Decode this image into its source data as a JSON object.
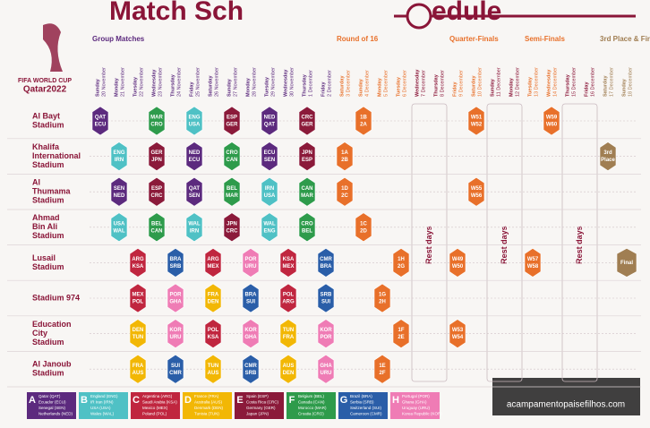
{
  "header": {
    "title_parts": [
      "Match Sch",
      "edule"
    ],
    "logo": [
      "FIFA WORLD CUP",
      "Qatar2022"
    ]
  },
  "stages": [
    {
      "name": "Group Matches",
      "days": 13,
      "color": "#5c2a7e"
    },
    {
      "name": "Round of 16",
      "days": 4,
      "color": "#e8702a"
    },
    {
      "name": "Rest days",
      "days": 2,
      "rest": true,
      "color": "#8a1538"
    },
    {
      "name": "Quarter-Finals",
      "days": 2,
      "color": "#e8702a"
    },
    {
      "name": "Rest days",
      "days": 2,
      "rest": true,
      "color": "#8a1538"
    },
    {
      "name": "Semi-Finals",
      "days": 2,
      "color": "#e8702a"
    },
    {
      "name": "Rest days",
      "days": 2,
      "rest": true,
      "color": "#8a1538"
    },
    {
      "name": "3rd Place & Final",
      "days": 2,
      "color": "#a07e52"
    }
  ],
  "dates": [
    {
      "day": "Sunday",
      "date": "20 November"
    },
    {
      "day": "Monday",
      "date": "21 November"
    },
    {
      "day": "Tuesday",
      "date": "22 November"
    },
    {
      "day": "Wednesday",
      "date": "23 November"
    },
    {
      "day": "Thursday",
      "date": "24 November"
    },
    {
      "day": "Friday",
      "date": "25 November"
    },
    {
      "day": "Saturday",
      "date": "26 November"
    },
    {
      "day": "Sunday",
      "date": "27 November"
    },
    {
      "day": "Monday",
      "date": "28 November"
    },
    {
      "day": "Tuesday",
      "date": "29 November"
    },
    {
      "day": "Wednesday",
      "date": "30 November"
    },
    {
      "day": "Thursday",
      "date": "1 December"
    },
    {
      "day": "Friday",
      "date": "2 December"
    },
    {
      "day": "Saturday",
      "date": "3 December"
    },
    {
      "day": "Sunday",
      "date": "4 December"
    },
    {
      "day": "Monday",
      "date": "5 December"
    },
    {
      "day": "Tuesday",
      "date": "6 December"
    },
    {
      "day": "Wednesday",
      "date": "7 December"
    },
    {
      "day": "Thursday",
      "date": "8 December"
    },
    {
      "day": "Friday",
      "date": "9 December"
    },
    {
      "day": "Saturday",
      "date": "10 December"
    },
    {
      "day": "Sunday",
      "date": "11 December"
    },
    {
      "day": "Monday",
      "date": "12 December"
    },
    {
      "day": "Tuesday",
      "date": "13 December"
    },
    {
      "day": "Wednesday",
      "date": "14 December"
    },
    {
      "day": "Thursday",
      "date": "15 December"
    },
    {
      "day": "Friday",
      "date": "16 December"
    },
    {
      "day": "Saturday",
      "date": "17 December"
    },
    {
      "day": "Sunday",
      "date": "18 December"
    }
  ],
  "stadiums": [
    {
      "name": [
        "Al Bayt",
        "Stadium"
      ],
      "matches": [
        {
          "day": 0,
          "t": [
            "QAT",
            "ECU"
          ],
          "g": "A"
        },
        {
          "day": 3,
          "t": [
            "MAR",
            "CRO"
          ],
          "g": "F"
        },
        {
          "day": 5,
          "t": [
            "ENG",
            "USA"
          ],
          "g": "B"
        },
        {
          "day": 7,
          "t": [
            "ESP",
            "GER"
          ],
          "g": "E"
        },
        {
          "day": 9,
          "t": [
            "NED",
            "QAT"
          ],
          "g": "A"
        },
        {
          "day": 11,
          "t": [
            "CRC",
            "GER"
          ],
          "g": "E"
        },
        {
          "day": 14,
          "t": [
            "1B",
            "2A"
          ]
        },
        {
          "day": 20,
          "t": [
            "W51",
            "W52"
          ]
        },
        {
          "day": 24,
          "t": [
            "W59",
            "W60"
          ]
        }
      ]
    },
    {
      "name": [
        "Khalifa",
        "International",
        "Stadium"
      ],
      "matches": [
        {
          "day": 1,
          "t": [
            "ENG",
            "IRN"
          ],
          "g": "B"
        },
        {
          "day": 3,
          "t": [
            "GER",
            "JPN"
          ],
          "g": "E"
        },
        {
          "day": 5,
          "t": [
            "NED",
            "ECU"
          ],
          "g": "A"
        },
        {
          "day": 7,
          "t": [
            "CRO",
            "CAN"
          ],
          "g": "F"
        },
        {
          "day": 9,
          "t": [
            "ECU",
            "SEN"
          ],
          "g": "A"
        },
        {
          "day": 11,
          "t": [
            "JPN",
            "ESP"
          ],
          "g": "E"
        },
        {
          "day": 13,
          "t": [
            "1A",
            "2B"
          ]
        },
        {
          "day": 27,
          "t": [
            "3rd",
            "Place"
          ]
        }
      ]
    },
    {
      "name": [
        "Al",
        "Thumama",
        "Stadium"
      ],
      "matches": [
        {
          "day": 1,
          "t": [
            "SEN",
            "NED"
          ],
          "g": "A"
        },
        {
          "day": 3,
          "t": [
            "ESP",
            "CRC"
          ],
          "g": "E"
        },
        {
          "day": 5,
          "t": [
            "QAT",
            "SEN"
          ],
          "g": "A"
        },
        {
          "day": 7,
          "t": [
            "BEL",
            "MAR"
          ],
          "g": "F"
        },
        {
          "day": 9,
          "t": [
            "IRN",
            "USA"
          ],
          "g": "B"
        },
        {
          "day": 11,
          "t": [
            "CAN",
            "MAR"
          ],
          "g": "F"
        },
        {
          "day": 13,
          "t": [
            "1D",
            "2C"
          ]
        },
        {
          "day": 20,
          "t": [
            "W55",
            "W56"
          ]
        }
      ]
    },
    {
      "name": [
        "Ahmad",
        "Bin Ali",
        "Stadium"
      ],
      "matches": [
        {
          "day": 1,
          "t": [
            "USA",
            "WAL"
          ],
          "g": "B"
        },
        {
          "day": 3,
          "t": [
            "BEL",
            "CAN"
          ],
          "g": "F"
        },
        {
          "day": 5,
          "t": [
            "WAL",
            "IRN"
          ],
          "g": "B"
        },
        {
          "day": 7,
          "t": [
            "JPN",
            "CRC"
          ],
          "g": "E"
        },
        {
          "day": 9,
          "t": [
            "WAL",
            "ENG"
          ],
          "g": "B"
        },
        {
          "day": 11,
          "t": [
            "CRO",
            "BEL"
          ],
          "g": "F"
        },
        {
          "day": 14,
          "t": [
            "1C",
            "2D"
          ]
        }
      ]
    },
    {
      "name": [
        "Lusail",
        "Stadium"
      ],
      "matches": [
        {
          "day": 2,
          "t": [
            "ARG",
            "KSA"
          ],
          "g": "C"
        },
        {
          "day": 4,
          "t": [
            "BRA",
            "SRB"
          ],
          "g": "G"
        },
        {
          "day": 6,
          "t": [
            "ARG",
            "MEX"
          ],
          "g": "C"
        },
        {
          "day": 8,
          "t": [
            "POR",
            "URU"
          ],
          "g": "H"
        },
        {
          "day": 10,
          "t": [
            "KSA",
            "MEX"
          ],
          "g": "C"
        },
        {
          "day": 12,
          "t": [
            "CMR",
            "BRA"
          ],
          "g": "G"
        },
        {
          "day": 16,
          "t": [
            "1H",
            "2G"
          ]
        },
        {
          "day": 19,
          "t": [
            "W49",
            "W50"
          ]
        },
        {
          "day": 23,
          "t": [
            "W57",
            "W58"
          ]
        },
        {
          "day": 28,
          "t": [
            "Final"
          ]
        }
      ]
    },
    {
      "name": [
        "Stadium 974"
      ],
      "matches": [
        {
          "day": 2,
          "t": [
            "MEX",
            "POL"
          ],
          "g": "C"
        },
        {
          "day": 4,
          "t": [
            "POR",
            "GHA"
          ],
          "g": "H"
        },
        {
          "day": 6,
          "t": [
            "FRA",
            "DEN"
          ],
          "g": "D"
        },
        {
          "day": 8,
          "t": [
            "BRA",
            "SUI"
          ],
          "g": "G"
        },
        {
          "day": 10,
          "t": [
            "POL",
            "ARG"
          ],
          "g": "C"
        },
        {
          "day": 12,
          "t": [
            "SRB",
            "SUI"
          ],
          "g": "G"
        },
        {
          "day": 15,
          "t": [
            "1G",
            "2H"
          ]
        }
      ]
    },
    {
      "name": [
        "Education",
        "City",
        "Stadium"
      ],
      "matches": [
        {
          "day": 2,
          "t": [
            "DEN",
            "TUN"
          ],
          "g": "D"
        },
        {
          "day": 4,
          "t": [
            "KOR",
            "URU"
          ],
          "g": "H"
        },
        {
          "day": 6,
          "t": [
            "POL",
            "KSA"
          ],
          "g": "C"
        },
        {
          "day": 8,
          "t": [
            "KOR",
            "GHA"
          ],
          "g": "H"
        },
        {
          "day": 10,
          "t": [
            "TUN",
            "FRA"
          ],
          "g": "D"
        },
        {
          "day": 12,
          "t": [
            "KOR",
            "POR"
          ],
          "g": "H"
        },
        {
          "day": 16,
          "t": [
            "1F",
            "2E"
          ]
        },
        {
          "day": 19,
          "t": [
            "W53",
            "W54"
          ]
        }
      ]
    },
    {
      "name": [
        "Al Janoub",
        "Stadium"
      ],
      "matches": [
        {
          "day": 2,
          "t": [
            "FRA",
            "AUS"
          ],
          "g": "D"
        },
        {
          "day": 4,
          "t": [
            "SUI",
            "CMR"
          ],
          "g": "G"
        },
        {
          "day": 6,
          "t": [
            "TUN",
            "AUS"
          ],
          "g": "D"
        },
        {
          "day": 8,
          "t": [
            "CMR",
            "SRB"
          ],
          "g": "G"
        },
        {
          "day": 10,
          "t": [
            "AUS",
            "DEN"
          ],
          "g": "D"
        },
        {
          "day": 12,
          "t": [
            "GHA",
            "URU"
          ],
          "g": "H"
        },
        {
          "day": 15,
          "t": [
            "1E",
            "2F"
          ]
        }
      ]
    }
  ],
  "groups": [
    {
      "letter": "A",
      "color": "#5c2a7e",
      "teams": [
        "Qatar (QAT)",
        "Ecuador (ECU)",
        "Senegal (SEN)",
        "Netherlands (NED)"
      ]
    },
    {
      "letter": "B",
      "color": "#4fc1c5",
      "teams": [
        "England (ENG)",
        "IR Iran (IRN)",
        "USA (USA)",
        "Wales (WAL)"
      ]
    },
    {
      "letter": "C",
      "color": "#c0263f",
      "teams": [
        "Argentina (ARG)",
        "Saudi Arabia (KSA)",
        "Mexico (MEX)",
        "Poland (POL)"
      ]
    },
    {
      "letter": "D",
      "color": "#f2b705",
      "teams": [
        "France (FRA)",
        "Australia (AUS)",
        "Denmark (DEN)",
        "Tunisia (TUN)"
      ]
    },
    {
      "letter": "E",
      "color": "#8b1a3a",
      "teams": [
        "Spain (ESP)",
        "Costa Rica (CRC)",
        "Germany (GER)",
        "Japan (JPN)"
      ]
    },
    {
      "letter": "F",
      "color": "#2e9b4b",
      "teams": [
        "Belgium (BEL)",
        "Canada (CAN)",
        "Morocco (MAR)",
        "Croatia (CRO)"
      ]
    },
    {
      "letter": "G",
      "color": "#2a5ea8",
      "teams": [
        "Brazil (BRA)",
        "Serbia (SRB)",
        "Switzerland (SUI)",
        "Cameroon (CMR)"
      ]
    },
    {
      "letter": "H",
      "color": "#ef7cb5",
      "teams": [
        "Portugal (POR)",
        "Ghana (GHA)",
        "Uruguay (URU)",
        "Korea Republic (KOR)"
      ]
    }
  ],
  "watermark": "acampamentopaisefilhos.com"
}
